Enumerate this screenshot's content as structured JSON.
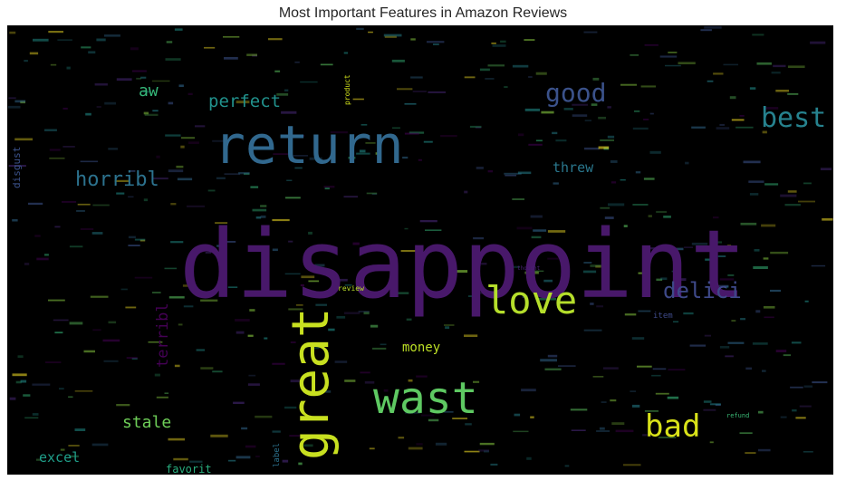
{
  "title": "Most Important Features in Amazon Reviews",
  "chart_data": {
    "type": "wordcloud",
    "title": "Most Important Features in Amazon Reviews",
    "background_color": "#000000",
    "colormap": "viridis",
    "words": [
      {
        "text": "disappoint",
        "weight": 100,
        "orientation": "horizontal",
        "color": "#48186a"
      },
      {
        "text": "return",
        "weight": 60,
        "orientation": "horizontal",
        "color": "#31688e"
      },
      {
        "text": "great",
        "weight": 55,
        "orientation": "vertical",
        "color": "#c8e020"
      },
      {
        "text": "wast",
        "weight": 50,
        "orientation": "horizontal",
        "color": "#5ec962"
      },
      {
        "text": "love",
        "weight": 45,
        "orientation": "horizontal",
        "color": "#b5de2b"
      },
      {
        "text": "best",
        "weight": 33,
        "orientation": "horizontal",
        "color": "#26828e"
      },
      {
        "text": "bad",
        "weight": 33,
        "orientation": "horizontal",
        "color": "#d8e219"
      },
      {
        "text": "good",
        "weight": 30,
        "orientation": "horizontal",
        "color": "#3b528b"
      },
      {
        "text": "delici",
        "weight": 26,
        "orientation": "horizontal",
        "color": "#3e4989"
      },
      {
        "text": "horribl",
        "weight": 22,
        "orientation": "horizontal",
        "color": "#2c728e"
      },
      {
        "text": "perfect",
        "weight": 19,
        "orientation": "horizontal",
        "color": "#21918c"
      },
      {
        "text": "aw",
        "weight": 18,
        "orientation": "horizontal",
        "color": "#35b779"
      },
      {
        "text": "stale",
        "weight": 18,
        "orientation": "horizontal",
        "color": "#6ece58"
      },
      {
        "text": "terribl",
        "weight": 17,
        "orientation": "vertical",
        "color": "#440154"
      },
      {
        "text": "threw",
        "weight": 15,
        "orientation": "horizontal",
        "color": "#2a788e"
      },
      {
        "text": "excel",
        "weight": 15,
        "orientation": "horizontal",
        "color": "#1f9e89"
      },
      {
        "text": "money",
        "weight": 14,
        "orientation": "horizontal",
        "color": "#bddf26"
      },
      {
        "text": "favorit",
        "weight": 12,
        "orientation": "horizontal",
        "color": "#29af7f"
      },
      {
        "text": "disgust",
        "weight": 11,
        "orientation": "vertical",
        "color": "#3b528b"
      },
      {
        "text": "item",
        "weight": 9,
        "orientation": "horizontal",
        "color": "#3e4a89"
      },
      {
        "text": "label",
        "weight": 9,
        "orientation": "vertical",
        "color": "#2c728e"
      },
      {
        "text": "review",
        "weight": 8,
        "orientation": "horizontal",
        "color": "#b8de29"
      },
      {
        "text": "product",
        "weight": 8,
        "orientation": "vertical",
        "color": "#d2e21b"
      },
      {
        "text": "refund",
        "weight": 7,
        "orientation": "horizontal",
        "color": "#3aba76"
      },
      {
        "text": "thought",
        "weight": 6,
        "orientation": "horizontal",
        "color": "#482173"
      }
    ]
  }
}
